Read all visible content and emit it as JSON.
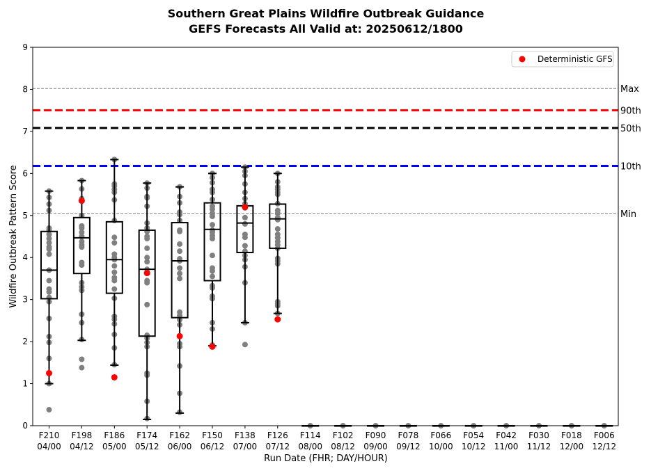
{
  "chart_data": {
    "type": "box",
    "title": "Southern Great Plains Wildfire Outbreak Guidance",
    "subtitle": "GEFS Forecasts All Valid at: 20250612/1800",
    "xlabel": "Run Date (FHR; DAY/HOUR)",
    "ylabel": "Wildfire Outbreak Pattern Score",
    "ylim": [
      0,
      9
    ],
    "yticks": [
      "0",
      "1",
      "2",
      "3",
      "4",
      "5",
      "6",
      "7",
      "8",
      "9"
    ],
    "grid": false,
    "legend_position": "top-right",
    "categories": [
      {
        "fhr": "F210",
        "day_hour": "04/00"
      },
      {
        "fhr": "F198",
        "day_hour": "04/12"
      },
      {
        "fhr": "F186",
        "day_hour": "05/00"
      },
      {
        "fhr": "F174",
        "day_hour": "05/12"
      },
      {
        "fhr": "F162",
        "day_hour": "06/00"
      },
      {
        "fhr": "F150",
        "day_hour": "06/12"
      },
      {
        "fhr": "F138",
        "day_hour": "07/00"
      },
      {
        "fhr": "F126",
        "day_hour": "07/12"
      },
      {
        "fhr": "F114",
        "day_hour": "08/00"
      },
      {
        "fhr": "F102",
        "day_hour": "08/12"
      },
      {
        "fhr": "F090",
        "day_hour": "09/00"
      },
      {
        "fhr": "F078",
        "day_hour": "09/12"
      },
      {
        "fhr": "F066",
        "day_hour": "10/00"
      },
      {
        "fhr": "F054",
        "day_hour": "10/12"
      },
      {
        "fhr": "F042",
        "day_hour": "11/00"
      },
      {
        "fhr": "F030",
        "day_hour": "11/12"
      },
      {
        "fhr": "F018",
        "day_hour": "12/00"
      },
      {
        "fhr": "F006",
        "day_hour": "12/12"
      }
    ],
    "boxes": [
      {
        "whisker_low": 1.0,
        "q1": 3.02,
        "median": 3.7,
        "q3": 4.62,
        "whisker_high": 5.58
      },
      {
        "whisker_low": 2.03,
        "q1": 3.62,
        "median": 4.47,
        "q3": 4.95,
        "whisker_high": 5.83
      },
      {
        "whisker_low": 1.44,
        "q1": 3.15,
        "median": 3.95,
        "q3": 4.85,
        "whisker_high": 6.33
      },
      {
        "whisker_low": 0.15,
        "q1": 2.13,
        "median": 3.72,
        "q3": 4.65,
        "whisker_high": 5.77
      },
      {
        "whisker_low": 0.3,
        "q1": 2.57,
        "median": 3.92,
        "q3": 4.83,
        "whisker_high": 5.68
      },
      {
        "whisker_low": 1.9,
        "q1": 3.45,
        "median": 4.67,
        "q3": 5.3,
        "whisker_high": 6.0
      },
      {
        "whisker_low": 2.45,
        "q1": 4.12,
        "median": 4.82,
        "q3": 5.23,
        "whisker_high": 6.15
      },
      {
        "whisker_low": 2.67,
        "q1": 4.22,
        "median": 4.92,
        "q3": 5.27,
        "whisker_high": 6.0
      },
      {
        "whisker_low": 0,
        "q1": 0,
        "median": 0,
        "q3": 0,
        "whisker_high": 0
      },
      {
        "whisker_low": 0,
        "q1": 0,
        "median": 0,
        "q3": 0,
        "whisker_high": 0
      },
      {
        "whisker_low": 0,
        "q1": 0,
        "median": 0,
        "q3": 0,
        "whisker_high": 0
      },
      {
        "whisker_low": 0,
        "q1": 0,
        "median": 0,
        "q3": 0,
        "whisker_high": 0
      },
      {
        "whisker_low": 0,
        "q1": 0,
        "median": 0,
        "q3": 0,
        "whisker_high": 0
      },
      {
        "whisker_low": 0,
        "q1": 0,
        "median": 0,
        "q3": 0,
        "whisker_high": 0
      },
      {
        "whisker_low": 0,
        "q1": 0,
        "median": 0,
        "q3": 0,
        "whisker_high": 0
      },
      {
        "whisker_low": 0,
        "q1": 0,
        "median": 0,
        "q3": 0,
        "whisker_high": 0
      },
      {
        "whisker_low": 0,
        "q1": 0,
        "median": 0,
        "q3": 0,
        "whisker_high": 0
      },
      {
        "whisker_low": 0,
        "q1": 0,
        "median": 0,
        "q3": 0,
        "whisker_high": 0
      }
    ],
    "members": [
      [
        5.58,
        5.43,
        5.27,
        5.12,
        4.7,
        4.65,
        4.55,
        4.45,
        4.35,
        4.25,
        4.2,
        4.08,
        3.7,
        3.45,
        3.25,
        3.18,
        3.05,
        2.95,
        2.55,
        2.12,
        1.98,
        1.6,
        1.0,
        0.38
      ],
      [
        5.83,
        5.63,
        5.4,
        5.0,
        4.75,
        4.7,
        4.6,
        4.5,
        4.38,
        4.3,
        4.25,
        3.88,
        3.82,
        3.4,
        3.3,
        3.22,
        2.65,
        2.45,
        2.05,
        1.58,
        1.38
      ],
      [
        6.33,
        5.75,
        5.7,
        5.62,
        5.55,
        5.37,
        4.88,
        4.48,
        4.35,
        4.08,
        4.0,
        3.95,
        3.8,
        3.65,
        3.52,
        3.45,
        3.25,
        3.03,
        2.6,
        2.53,
        2.42,
        2.17,
        1.85,
        1.45
      ],
      [
        5.77,
        5.65,
        5.45,
        5.42,
        5.22,
        4.82,
        4.7,
        4.62,
        4.5,
        4.45,
        4.22,
        4.0,
        3.9,
        3.72,
        3.45,
        3.4,
        2.88,
        2.15,
        2.08,
        1.98,
        1.88,
        1.25,
        1.2,
        0.58,
        0.17
      ],
      [
        5.68,
        5.45,
        5.3,
        5.08,
        5.02,
        4.88,
        4.65,
        4.62,
        4.32,
        4.15,
        3.97,
        3.92,
        3.75,
        3.62,
        3.5,
        2.7,
        2.62,
        2.52,
        2.4,
        1.95,
        1.88,
        1.42,
        0.77,
        0.32
      ],
      [
        6.0,
        5.9,
        5.78,
        5.62,
        5.55,
        5.38,
        5.22,
        5.15,
        5.05,
        4.98,
        4.78,
        4.65,
        4.6,
        4.52,
        4.45,
        4.05,
        3.75,
        3.68,
        3.55,
        3.33,
        3.28,
        3.08,
        3.02,
        2.45,
        2.3,
        1.92
      ],
      [
        6.15,
        6.05,
        5.95,
        5.75,
        5.55,
        5.4,
        5.28,
        5.18,
        4.95,
        4.8,
        4.55,
        4.48,
        4.28,
        4.15,
        4.05,
        3.95,
        3.78,
        3.4,
        2.45,
        1.93
      ],
      [
        6.0,
        5.8,
        5.68,
        5.62,
        5.55,
        5.5,
        5.28,
        5.12,
        5.05,
        4.95,
        4.9,
        4.68,
        4.55,
        4.47,
        4.38,
        4.3,
        4.22,
        3.98,
        3.92,
        3.85,
        2.95,
        2.9,
        2.85,
        2.67
      ],
      [
        0
      ],
      [
        0
      ],
      [
        0
      ],
      [
        0
      ],
      [
        0
      ],
      [
        0
      ],
      [
        0
      ],
      [
        0
      ],
      [
        0
      ],
      [
        0
      ]
    ],
    "deterministic_gfs": [
      1.25,
      5.35,
      1.15,
      3.63,
      2.13,
      1.88,
      5.2,
      2.53,
      null,
      null,
      null,
      null,
      null,
      null,
      null,
      null,
      null,
      null
    ],
    "reference_lines": [
      {
        "label": "Max",
        "value": 8.02,
        "color": "#808080",
        "style": "thin-dashed"
      },
      {
        "label": "90th",
        "value": 7.5,
        "color": "#ff0000",
        "style": "thick-dashed"
      },
      {
        "label": "50th",
        "value": 7.08,
        "color": "#000000",
        "style": "thick-dashed"
      },
      {
        "label": "10th",
        "value": 6.18,
        "color": "#0000ff",
        "style": "thick-dashed"
      },
      {
        "label": "Min",
        "value": 5.05,
        "color": "#808080",
        "style": "thin-dashed"
      }
    ],
    "legend": [
      {
        "label": "Deterministic GFS",
        "color": "#ff0000",
        "marker": "circle"
      }
    ],
    "colors": {
      "member_points": "#808080",
      "deterministic": "#ff0000",
      "box": "#000000"
    }
  }
}
